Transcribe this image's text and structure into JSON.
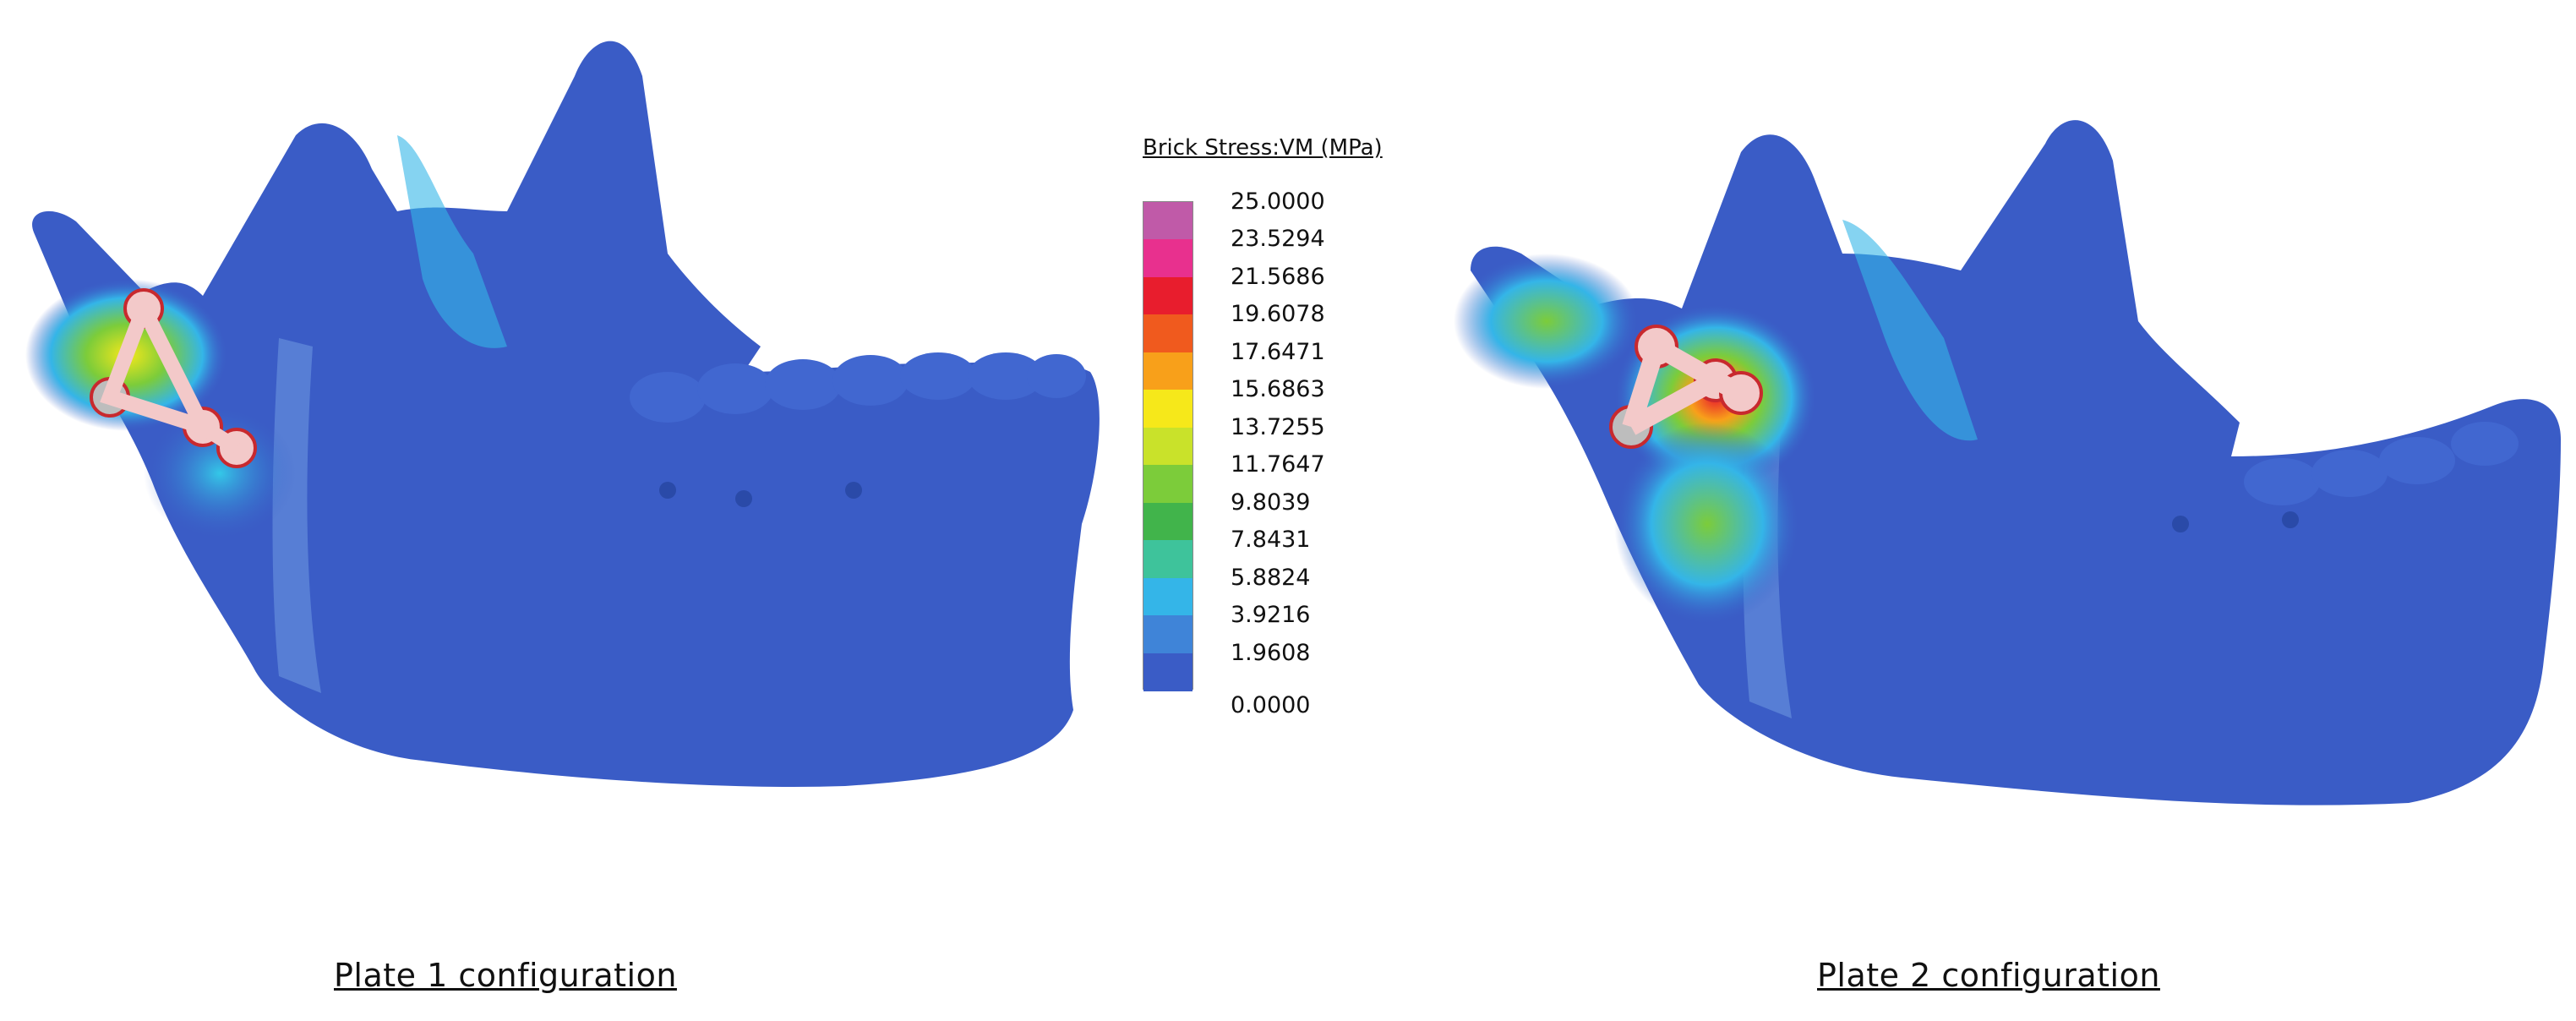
{
  "legend": {
    "title": "Brick Stress:VM (MPa)",
    "ticks": [
      "25.0000",
      "23.5294",
      "21.5686",
      "19.6078",
      "17.6471",
      "15.6863",
      "13.7255",
      "11.7647",
      "9.8039",
      "7.8431",
      "5.8824",
      "3.9216",
      "1.9608",
      "0.0000"
    ],
    "colors": [
      "#c05aa8",
      "#e8308e",
      "#e81d2d",
      "#f05a1e",
      "#f8a01a",
      "#f6e81a",
      "#c9e22a",
      "#7ccc3a",
      "#41b44b",
      "#3ec39b",
      "#34b5e8",
      "#3f84d8",
      "#3a5cc6"
    ]
  },
  "panels": [
    {
      "caption": "Plate 1 configuration"
    },
    {
      "caption": "Plate 2 configuration"
    }
  ]
}
